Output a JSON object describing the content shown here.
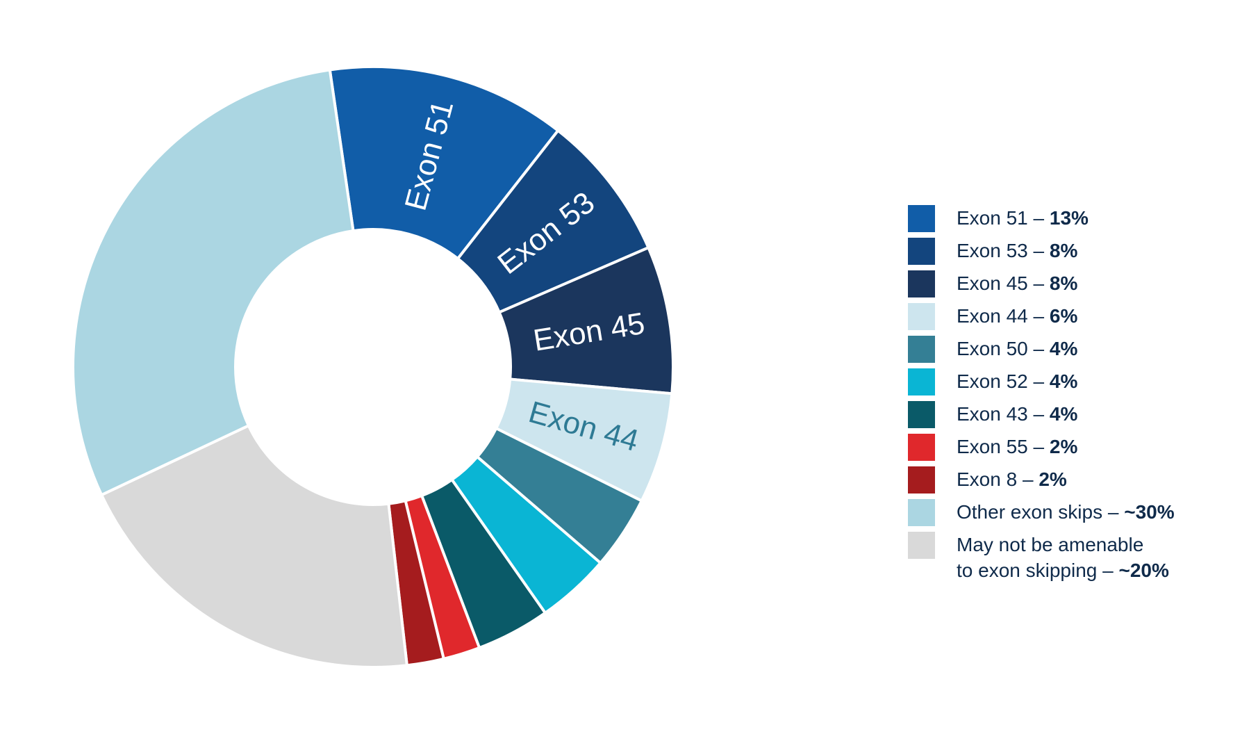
{
  "chart_data": {
    "type": "pie",
    "donut": true,
    "title": "",
    "legend_position": "right",
    "slices": [
      {
        "key": "exon51",
        "label": "Exon 51",
        "value": 13,
        "value_label": "13%",
        "color": "#115da8",
        "slice_text": "Exon 51",
        "slice_text_color": "#ffffff"
      },
      {
        "key": "exon53",
        "label": "Exon 53",
        "value": 8,
        "value_label": "8%",
        "color": "#13457e",
        "slice_text": "Exon 53",
        "slice_text_color": "#ffffff"
      },
      {
        "key": "exon45",
        "label": "Exon 45",
        "value": 8,
        "value_label": "8%",
        "color": "#1b365d",
        "slice_text": "Exon 45",
        "slice_text_color": "#ffffff"
      },
      {
        "key": "exon44",
        "label": "Exon 44",
        "value": 6,
        "value_label": "6%",
        "color": "#cde5ee",
        "slice_text": "Exon 44",
        "slice_text_color": "#2e7a94"
      },
      {
        "key": "exon50",
        "label": "Exon 50",
        "value": 4,
        "value_label": "4%",
        "color": "#347f95",
        "slice_text": "",
        "slice_text_color": ""
      },
      {
        "key": "exon52",
        "label": "Exon 52",
        "value": 4,
        "value_label": "4%",
        "color": "#0ab5d4",
        "slice_text": "",
        "slice_text_color": ""
      },
      {
        "key": "exon43",
        "label": "Exon 43",
        "value": 4,
        "value_label": "4%",
        "color": "#0a5a68",
        "slice_text": "",
        "slice_text_color": ""
      },
      {
        "key": "exon55",
        "label": "Exon 55",
        "value": 2,
        "value_label": "2%",
        "color": "#e0282c",
        "slice_text": "",
        "slice_text_color": ""
      },
      {
        "key": "exon8",
        "label": "Exon 8",
        "value": 2,
        "value_label": "2%",
        "color": "#a51c1e",
        "slice_text": "",
        "slice_text_color": ""
      },
      {
        "key": "not-amenable",
        "label": "May not be amenable to exon skipping",
        "label_lines": [
          "May not be amenable",
          "to exon skipping"
        ],
        "value": 20,
        "value_label": "~20%",
        "color": "#d9d9d9",
        "slice_text": "",
        "slice_text_color": ""
      },
      {
        "key": "other",
        "label": "Other exon skips",
        "value": 30,
        "value_label": "~30%",
        "color": "#abd6e2",
        "slice_text": "",
        "slice_text_color": ""
      }
    ],
    "legend_order": [
      "exon51",
      "exon53",
      "exon45",
      "exon44",
      "exon50",
      "exon52",
      "exon43",
      "exon55",
      "exon8",
      "other",
      "not-amenable"
    ]
  }
}
